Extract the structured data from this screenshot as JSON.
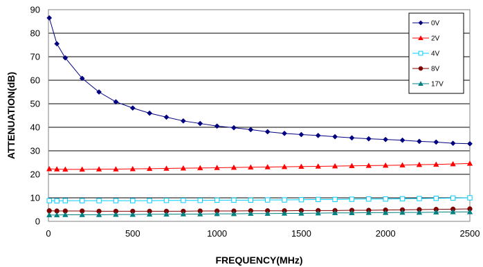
{
  "chart_data": {
    "type": "line",
    "xlabel": "FREQUENCY(MHz)",
    "ylabel": "ATTENUATION(dB)",
    "xlim": [
      0,
      2500
    ],
    "ylim": [
      0,
      90
    ],
    "xticks": [
      0,
      500,
      1000,
      1500,
      2000,
      2500
    ],
    "yticks": [
      0,
      10,
      20,
      30,
      40,
      50,
      60,
      70,
      80,
      90
    ],
    "grid": true,
    "legend_position": "top-right",
    "x": [
      5,
      50,
      100,
      200,
      300,
      400,
      500,
      600,
      700,
      800,
      900,
      1000,
      1100,
      1200,
      1300,
      1400,
      1500,
      1600,
      1700,
      1800,
      1900,
      2000,
      2100,
      2200,
      2300,
      2400,
      2500
    ],
    "series": [
      {
        "name": "0V",
        "color": "#000080",
        "marker": "diamond",
        "values": [
          86.5,
          75.5,
          69.5,
          60.8,
          55.0,
          50.8,
          48.2,
          46.0,
          44.3,
          42.7,
          41.6,
          40.5,
          39.8,
          39.0,
          38.1,
          37.4,
          36.9,
          36.5,
          36.0,
          35.5,
          35.1,
          34.8,
          34.5,
          34.0,
          33.7,
          33.2,
          33.0
        ]
      },
      {
        "name": "2V",
        "color": "#ff0000",
        "marker": "triangle",
        "values": [
          22.3,
          22.2,
          22.1,
          22.1,
          22.2,
          22.2,
          22.3,
          22.4,
          22.5,
          22.6,
          22.7,
          22.8,
          22.9,
          23.0,
          23.1,
          23.2,
          23.3,
          23.4,
          23.5,
          23.6,
          23.7,
          23.8,
          23.9,
          24.1,
          24.2,
          24.4,
          24.6
        ]
      },
      {
        "name": "4V",
        "color": "#00ccff",
        "marker": "square",
        "values": [
          8.8,
          8.7,
          8.8,
          8.8,
          8.8,
          8.8,
          8.8,
          8.8,
          8.9,
          8.9,
          8.9,
          9.0,
          9.0,
          9.0,
          9.1,
          9.1,
          9.2,
          9.3,
          9.3,
          9.4,
          9.5,
          9.5,
          9.6,
          9.7,
          9.8,
          9.9,
          10.0
        ]
      },
      {
        "name": "8V",
        "color": "#800000",
        "marker": "circle",
        "values": [
          4.5,
          4.4,
          4.4,
          4.4,
          4.3,
          4.3,
          4.3,
          4.3,
          4.3,
          4.3,
          4.4,
          4.4,
          4.4,
          4.5,
          4.5,
          4.5,
          4.6,
          4.6,
          4.6,
          4.7,
          4.7,
          4.8,
          4.9,
          5.0,
          5.1,
          5.2,
          5.3
        ]
      },
      {
        "name": "17V",
        "color": "#008080",
        "marker": "triangle",
        "values": [
          2.7,
          2.7,
          2.8,
          2.8,
          2.8,
          2.9,
          2.9,
          3.0,
          3.0,
          3.1,
          3.1,
          3.2,
          3.2,
          3.3,
          3.3,
          3.4,
          3.4,
          3.5,
          3.6,
          3.6,
          3.7,
          3.7,
          3.8,
          3.8,
          3.9,
          4.0,
          4.0
        ]
      }
    ]
  }
}
